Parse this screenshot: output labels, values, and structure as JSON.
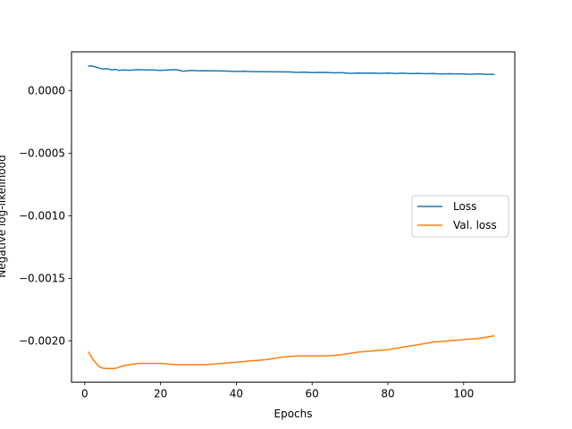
{
  "chart_data": {
    "type": "line",
    "title": "",
    "xlabel": "Epochs",
    "ylabel": "Negative log-likelihood",
    "xlim": [
      -3.5,
      113.5
    ],
    "ylim": [
      -0.00233,
      0.00031
    ],
    "xticks": [
      0,
      20,
      40,
      60,
      80,
      100
    ],
    "yticks": [
      -0.002,
      -0.0015,
      -0.001,
      -0.0005,
      0.0
    ],
    "ytick_labels": [
      "−0.0020",
      "−0.0015",
      "−0.0010",
      "−0.0005",
      "0.0000"
    ],
    "grid": false,
    "legend": {
      "position": "center-right",
      "entries": [
        "Loss",
        "Val. loss"
      ]
    },
    "colors": {
      "Loss": "#1f77b4",
      "Val. loss": "#ff7f0e"
    },
    "series": [
      {
        "name": "Loss",
        "x": [
          1,
          2,
          3,
          4,
          5,
          6,
          7,
          8,
          9,
          10,
          12,
          14,
          16,
          18,
          20,
          22,
          24,
          26,
          28,
          30,
          32,
          34,
          36,
          38,
          40,
          42,
          44,
          46,
          48,
          50,
          52,
          54,
          56,
          58,
          60,
          62,
          64,
          66,
          68,
          70,
          72,
          74,
          76,
          78,
          80,
          82,
          84,
          86,
          88,
          90,
          92,
          94,
          96,
          98,
          100,
          102,
          104,
          106,
          108
        ],
        "values": [
          0.000198,
          0.000196,
          0.000188,
          0.000178,
          0.000172,
          0.000176,
          0.000166,
          0.00017,
          0.000162,
          0.000165,
          0.000163,
          0.000168,
          0.000165,
          0.000166,
          0.000162,
          0.000166,
          0.000168,
          0.000155,
          0.000162,
          0.000158,
          0.000159,
          0.000158,
          0.000157,
          0.000156,
          0.000153,
          0.000154,
          0.000152,
          0.000151,
          0.000151,
          0.00015,
          0.00015,
          0.000149,
          0.000146,
          0.000148,
          0.000144,
          0.000146,
          0.000145,
          0.000142,
          0.000144,
          0.000138,
          0.00014,
          0.000139,
          0.000141,
          0.000138,
          0.00014,
          0.000137,
          0.000139,
          0.000136,
          0.000138,
          0.000135,
          0.000137,
          0.000132,
          0.000135,
          0.000134,
          0.000133,
          0.000131,
          0.000134,
          0.000129,
          0.000131
        ]
      },
      {
        "name": "Val. loss",
        "x": [
          1,
          2,
          3,
          4,
          5,
          6,
          7,
          8,
          10,
          12,
          14,
          16,
          18,
          20,
          24,
          28,
          32,
          36,
          40,
          44,
          48,
          50,
          52,
          56,
          60,
          64,
          68,
          72,
          76,
          80,
          84,
          88,
          92,
          96,
          100,
          104,
          108
        ],
        "values": [
          -0.00209,
          -0.00214,
          -0.00218,
          -0.00221,
          -0.00222,
          -0.00222,
          -0.00222,
          -0.00222,
          -0.0022,
          -0.00219,
          -0.00218,
          -0.00218,
          -0.00218,
          -0.00218,
          -0.00219,
          -0.00219,
          -0.00219,
          -0.00218,
          -0.00217,
          -0.00216,
          -0.00215,
          -0.00214,
          -0.00213,
          -0.00212,
          -0.00212,
          -0.00212,
          -0.00211,
          -0.00209,
          -0.00208,
          -0.00207,
          -0.00205,
          -0.00203,
          -0.00201,
          -0.002,
          -0.00199,
          -0.00198,
          -0.00196
        ]
      }
    ]
  }
}
